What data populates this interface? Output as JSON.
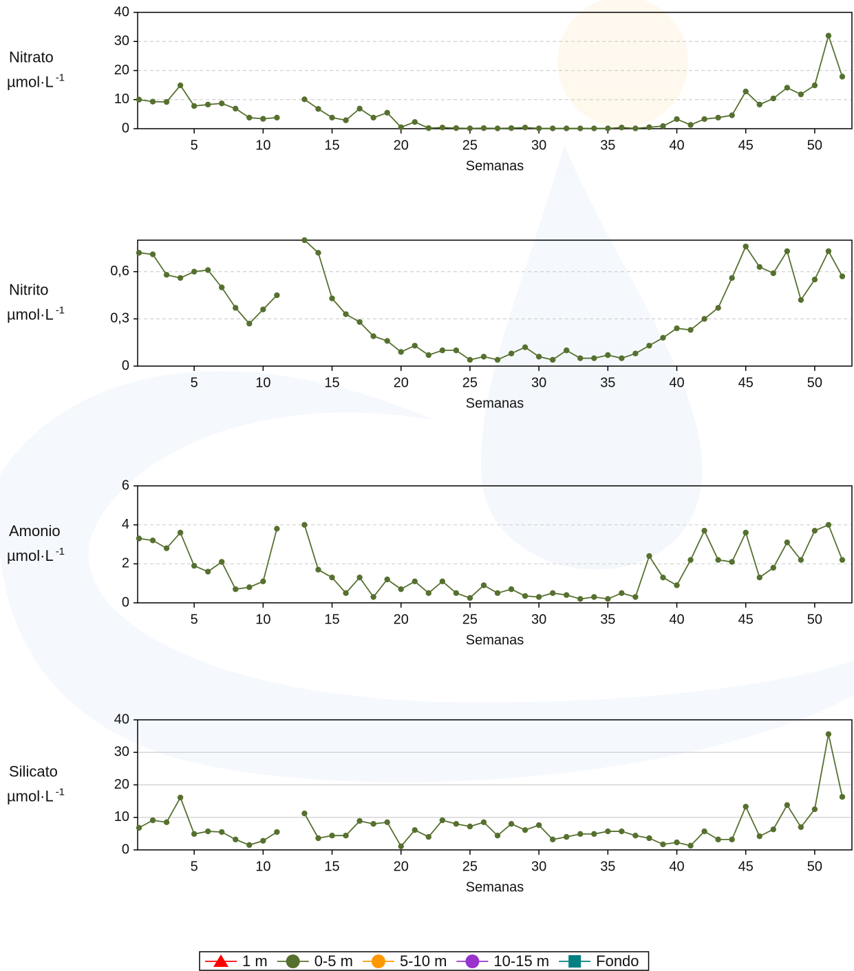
{
  "chart_data": [
    {
      "type": "line",
      "ylabel": "Nitrato",
      "ylabel_unit": "µmol·L",
      "ylabel_unit_sup": "-1",
      "xlabel": "Semanas",
      "x": [
        1,
        2,
        3,
        4,
        5,
        6,
        7,
        8,
        9,
        10,
        11,
        12,
        13,
        14,
        15,
        16,
        17,
        18,
        19,
        20,
        21,
        22,
        23,
        24,
        25,
        26,
        27,
        28,
        29,
        30,
        31,
        32,
        33,
        34,
        35,
        36,
        37,
        38,
        39,
        40,
        41,
        42,
        43,
        44,
        45,
        46,
        47,
        48,
        49,
        50,
        51,
        52
      ],
      "series": [
        {
          "color": "#56702f",
          "values": [
            10,
            9.3,
            9.2,
            14.9,
            7.8,
            8.3,
            8.7,
            6.9,
            3.8,
            3.4,
            3.8,
            null,
            10.1,
            6.8,
            3.8,
            2.9,
            6.9,
            3.8,
            5.5,
            0.5,
            2.3,
            0.2,
            0.4,
            0.2,
            0.1,
            0.2,
            0.1,
            0.2,
            0.4,
            0.1,
            0.1,
            0.1,
            0.1,
            0.1,
            0.1,
            0.4,
            0.1,
            0.5,
            0.9,
            3.3,
            1.3,
            3.3,
            3.8,
            4.6,
            12.8,
            8.3,
            10.4,
            14.1,
            11.8,
            14.9,
            32,
            17.9
          ]
        }
      ],
      "xlim": [
        1,
        52.4
      ],
      "xticks": [
        5,
        10,
        15,
        20,
        25,
        30,
        35,
        40,
        45,
        50
      ],
      "ylim": [
        0,
        40
      ],
      "yticks": [
        0,
        10,
        20,
        30,
        40
      ],
      "grid": true,
      "grid_style": "dashed"
    },
    {
      "type": "line",
      "ylabel": "Nitrito",
      "ylabel_unit": "µmol·L",
      "ylabel_unit_sup": "-1",
      "xlabel": "Semanas",
      "x": [
        1,
        2,
        3,
        4,
        5,
        6,
        7,
        8,
        9,
        10,
        11,
        12,
        13,
        14,
        15,
        16,
        17,
        18,
        19,
        20,
        21,
        22,
        23,
        24,
        25,
        26,
        27,
        28,
        29,
        30,
        31,
        32,
        33,
        34,
        35,
        36,
        37,
        38,
        39,
        40,
        41,
        42,
        43,
        44,
        45,
        46,
        47,
        48,
        49,
        50,
        51,
        52
      ],
      "series": [
        {
          "color": "#56702f",
          "values": [
            0.72,
            0.71,
            0.58,
            0.56,
            0.6,
            0.61,
            0.5,
            0.37,
            0.27,
            0.36,
            0.45,
            null,
            0.8,
            0.72,
            0.43,
            0.33,
            0.28,
            0.19,
            0.16,
            0.09,
            0.13,
            0.07,
            0.1,
            0.1,
            0.04,
            0.06,
            0.04,
            0.08,
            0.12,
            0.06,
            0.04,
            0.1,
            0.05,
            0.05,
            0.07,
            0.05,
            0.08,
            0.13,
            0.18,
            0.24,
            0.23,
            0.3,
            0.37,
            0.56,
            0.76,
            0.63,
            0.59,
            0.73,
            0.42,
            0.55,
            0.73,
            0.57
          ]
        }
      ],
      "xlim": [
        1,
        52.4
      ],
      "xticks": [
        5,
        10,
        15,
        20,
        25,
        30,
        35,
        40,
        45,
        50
      ],
      "ylim": [
        0,
        0.8
      ],
      "yticks": [
        0,
        {
          "value": 0.3,
          "label": "0,3"
        },
        {
          "value": 0.6,
          "label": "0,6"
        }
      ],
      "grid": true,
      "grid_style": "dashed"
    },
    {
      "type": "line",
      "ylabel": "Amonio",
      "ylabel_unit": "µmol·L",
      "ylabel_unit_sup": "-1",
      "xlabel": "Semanas",
      "x": [
        1,
        2,
        3,
        4,
        5,
        6,
        7,
        8,
        9,
        10,
        11,
        12,
        13,
        14,
        15,
        16,
        17,
        18,
        19,
        20,
        21,
        22,
        23,
        24,
        25,
        26,
        27,
        28,
        29,
        30,
        31,
        32,
        33,
        34,
        35,
        36,
        37,
        38,
        39,
        40,
        41,
        42,
        43,
        44,
        45,
        46,
        47,
        48,
        49,
        50,
        51,
        52
      ],
      "series": [
        {
          "color": "#56702f",
          "values": [
            3.3,
            3.2,
            2.8,
            3.6,
            1.9,
            1.6,
            2.1,
            0.7,
            0.8,
            1.1,
            3.8,
            null,
            4.0,
            1.7,
            1.3,
            0.5,
            1.3,
            0.3,
            1.2,
            0.7,
            1.1,
            0.5,
            1.1,
            0.5,
            0.25,
            0.9,
            0.5,
            0.7,
            0.35,
            0.3,
            0.5,
            0.4,
            0.2,
            0.3,
            0.2,
            0.5,
            0.3,
            2.4,
            1.3,
            0.9,
            2.2,
            3.7,
            2.2,
            2.1,
            3.6,
            1.3,
            1.8,
            3.1,
            2.2,
            3.7,
            4.0,
            2.2
          ]
        }
      ],
      "xlim": [
        1,
        52.4
      ],
      "xticks": [
        5,
        10,
        15,
        20,
        25,
        30,
        35,
        40,
        45,
        50
      ],
      "ylim": [
        0,
        6
      ],
      "yticks": [
        0,
        2,
        4,
        6
      ],
      "grid": true,
      "grid_style": "dashed"
    },
    {
      "type": "line",
      "ylabel": "Silicato",
      "ylabel_unit": "µmol·L",
      "ylabel_unit_sup": "-1",
      "xlabel": "Semanas",
      "x": [
        1,
        2,
        3,
        4,
        5,
        6,
        7,
        8,
        9,
        10,
        11,
        12,
        13,
        14,
        15,
        16,
        17,
        18,
        19,
        20,
        21,
        22,
        23,
        24,
        25,
        26,
        27,
        28,
        29,
        30,
        31,
        32,
        33,
        34,
        35,
        36,
        37,
        38,
        39,
        40,
        41,
        42,
        43,
        44,
        45,
        46,
        47,
        48,
        49,
        50,
        51,
        52
      ],
      "series": [
        {
          "color": "#56702f",
          "values": [
            6.8,
            9.1,
            8.5,
            16.1,
            4.9,
            5.7,
            5.5,
            3.2,
            1.5,
            2.8,
            5.5,
            null,
            11.2,
            3.6,
            4.4,
            4.4,
            8.9,
            8.0,
            8.5,
            1.1,
            6.1,
            4.0,
            9.1,
            8.0,
            7.2,
            8.5,
            4.4,
            8.0,
            6.1,
            7.6,
            3.2,
            4.0,
            4.9,
            4.9,
            5.7,
            5.7,
            4.4,
            3.6,
            1.7,
            2.3,
            1.3,
            5.7,
            3.2,
            3.2,
            13.3,
            4.2,
            6.3,
            13.8,
            7.0,
            12.5,
            35.6,
            16.3
          ]
        }
      ],
      "xlim": [
        1,
        52.4
      ],
      "xticks": [
        5,
        10,
        15,
        20,
        25,
        30,
        35,
        40,
        45,
        50
      ],
      "ylim": [
        0,
        40
      ],
      "yticks": [
        0,
        10,
        20,
        30,
        40
      ],
      "grid": true,
      "grid_style": "solid"
    }
  ],
  "legend": {
    "entries": [
      {
        "name": "1 m",
        "color": "#ff0000",
        "marker": "triangle"
      },
      {
        "name": "0-5 m",
        "color": "#56702f",
        "marker": "circle"
      },
      {
        "name": "5-10 m",
        "color": "#ff9900",
        "marker": "circle"
      },
      {
        "name": "10-15 m",
        "color": "#9933cc",
        "marker": "circle"
      },
      {
        "name": "Fondo",
        "color": "#008080",
        "marker": "square"
      }
    ]
  }
}
